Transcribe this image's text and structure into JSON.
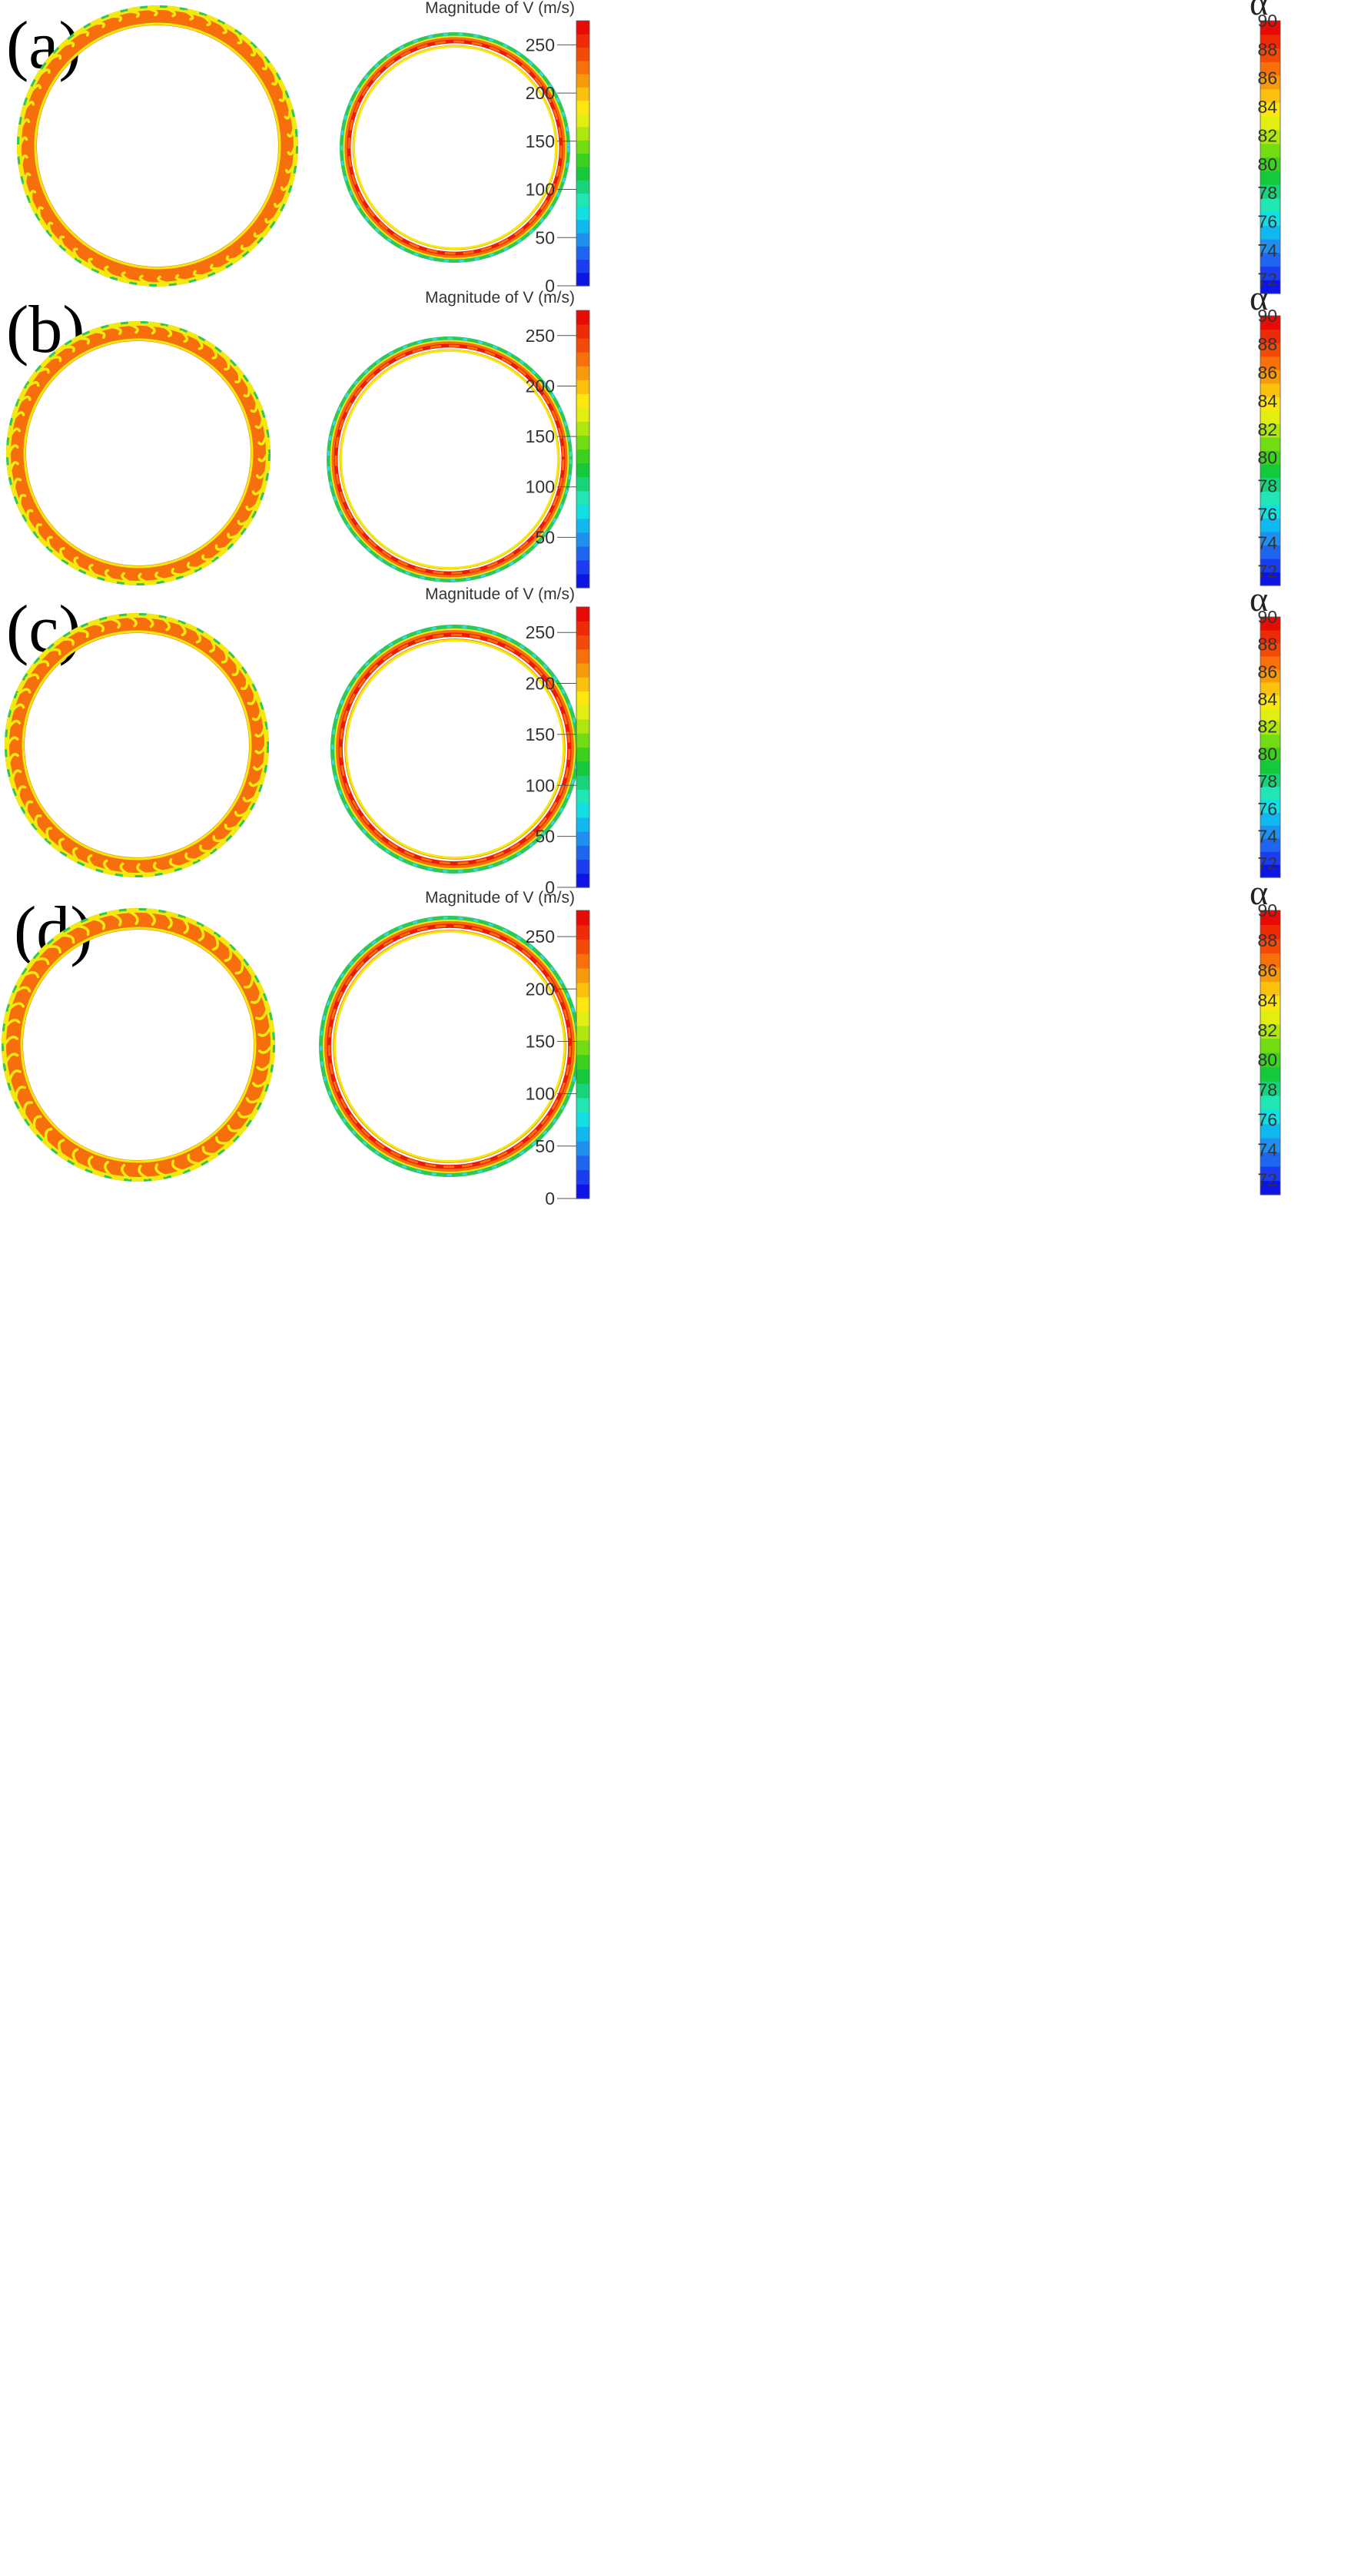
{
  "panels": [
    {
      "label": "(a)",
      "velocity_title": "Magnitude of V (m/s)",
      "velocity_ticks": [
        "250",
        "200",
        "150",
        "100",
        "50",
        "0"
      ],
      "alpha_symbol": "α",
      "alpha_ticks": [
        "90",
        "88",
        "86",
        "84",
        "82",
        "80",
        "78",
        "76",
        "74",
        "72"
      ]
    },
    {
      "label": "(b)",
      "velocity_title": "Magnitude of V (m/s)",
      "velocity_ticks": [
        "250",
        "200",
        "150",
        "100",
        "50"
      ],
      "alpha_symbol": "α",
      "alpha_ticks": [
        "90",
        "88",
        "86",
        "84",
        "82",
        "80",
        "78",
        "76",
        "74",
        "72"
      ]
    },
    {
      "label": "(c)",
      "velocity_title": "Magnitude of V (m/s)",
      "velocity_ticks": [
        "250",
        "200",
        "150",
        "100",
        "50",
        "0"
      ],
      "alpha_symbol": "α",
      "alpha_ticks": [
        "90",
        "88",
        "86",
        "84",
        "82",
        "80",
        "78",
        "76",
        "74",
        "72"
      ]
    },
    {
      "label": "(d)",
      "velocity_title": "Magnitude of V (m/s)",
      "velocity_ticks": [
        "250",
        "200",
        "150",
        "100",
        "50",
        "0"
      ],
      "alpha_symbol": "α",
      "alpha_ticks": [
        "90",
        "88",
        "86",
        "84",
        "82",
        "80",
        "78",
        "76",
        "74",
        "72"
      ]
    }
  ],
  "colors": {
    "scale": [
      "#0c14e6",
      "#1a3df2",
      "#1e66f0",
      "#1f8ff0",
      "#10b8f0",
      "#12dfe3",
      "#1fe6b2",
      "#17d47a",
      "#14c93a",
      "#3ad21e",
      "#72dc12",
      "#aee60e",
      "#e2ed10",
      "#fde70f",
      "#fbc10c",
      "#f99a0a",
      "#f7700a",
      "#f34a08",
      "#ef2a06",
      "#e80a05"
    ],
    "ring_green": "#2ec85a",
    "ring_yellow": "#f2e90e",
    "ring_orange": "#f76e0c",
    "ring_red": "#ec1a06"
  }
}
